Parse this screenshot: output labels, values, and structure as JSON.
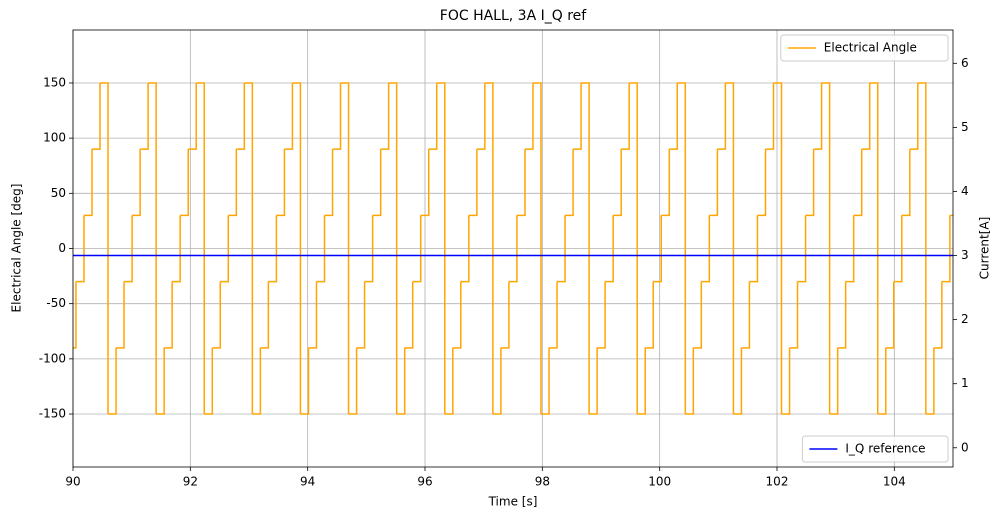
{
  "chart_data": {
    "type": "line",
    "title": "FOC HALL, 3A I_Q ref",
    "xlabel": "Time [s]",
    "ylabel": "Electrical Angle [deg]",
    "y2label": "Current[A]",
    "xlim": [
      90,
      105
    ],
    "xticks": [
      90,
      92,
      94,
      96,
      98,
      100,
      102,
      104
    ],
    "ylim": [
      -198,
      198
    ],
    "yticks": [
      -150,
      -100,
      -50,
      0,
      50,
      100,
      150
    ],
    "y2lim": [
      -0.3,
      6.52
    ],
    "y2ticks": [
      0,
      1,
      2,
      3,
      4,
      5,
      6
    ],
    "grid": true,
    "series": [
      {
        "name": "Electrical Angle",
        "color": "#ffa500",
        "step": "post",
        "legend_loc": "upper right",
        "x": [
          90,
          90.05,
          90.187,
          90.324,
          90.46,
          90.597,
          90.734,
          90.87,
          91.007,
          91.144,
          91.28,
          91.417,
          91.554,
          91.69,
          91.827,
          91.964,
          92.1,
          92.237,
          92.374,
          92.51,
          92.647,
          92.784,
          92.92,
          93.057,
          93.194,
          93.33,
          93.467,
          93.604,
          93.74,
          93.877,
          94.014,
          94.15,
          94.287,
          94.424,
          94.56,
          94.697,
          94.834,
          94.97,
          95.107,
          95.244,
          95.38,
          95.517,
          95.654,
          95.79,
          95.927,
          96.064,
          96.2,
          96.337,
          96.474,
          96.61,
          96.747,
          96.884,
          97.02,
          97.157,
          97.294,
          97.43,
          97.567,
          97.704,
          97.84,
          97.977,
          98.114,
          98.25,
          98.387,
          98.524,
          98.66,
          98.797,
          98.934,
          99.07,
          99.207,
          99.344,
          99.48,
          99.617,
          99.754,
          99.89,
          100.027,
          100.164,
          100.3,
          100.437,
          100.574,
          100.71,
          100.847,
          100.984,
          101.12,
          101.257,
          101.394,
          101.53,
          101.667,
          101.804,
          101.94,
          102.077,
          102.214,
          102.35,
          102.487,
          102.624,
          102.76,
          102.897,
          103.034,
          103.17,
          103.307,
          103.444,
          103.58,
          103.717,
          103.854,
          103.99,
          104.127,
          104.264,
          104.4,
          104.537,
          104.674,
          104.81,
          104.947,
          105
        ],
        "values": [
          -90,
          -30,
          30,
          90,
          150,
          -150,
          -90,
          -30,
          30,
          90,
          150,
          -150,
          -90,
          -30,
          30,
          90,
          150,
          -150,
          -90,
          -30,
          30,
          90,
          150,
          -150,
          -90,
          -30,
          30,
          90,
          150,
          -150,
          -90,
          -30,
          30,
          90,
          150,
          -150,
          -90,
          -30,
          30,
          90,
          150,
          -150,
          -90,
          -30,
          30,
          90,
          150,
          -150,
          -90,
          -30,
          30,
          90,
          150,
          -150,
          -90,
          -30,
          30,
          90,
          150,
          -150,
          -90,
          -30,
          30,
          90,
          150,
          -150,
          -90,
          -30,
          30,
          90,
          150,
          -150,
          -90,
          -30,
          30,
          90,
          150,
          -150,
          -90,
          -30,
          30,
          90,
          150,
          -150,
          -90,
          -30,
          30,
          90,
          150,
          -150,
          -90,
          -30,
          30,
          90,
          150,
          -150,
          -90,
          -30,
          30,
          90,
          150,
          -150,
          -90,
          -30,
          30,
          90,
          150,
          -150,
          -90,
          -30,
          30,
          30
        ]
      },
      {
        "name": "I_Q reference",
        "color": "#0000ff",
        "axis": "y2",
        "legend_loc": "lower right",
        "x": [
          90,
          105
        ],
        "values": [
          3,
          3
        ]
      }
    ]
  }
}
